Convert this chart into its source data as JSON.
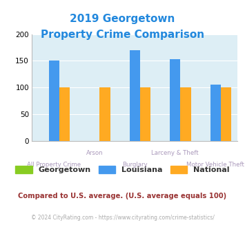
{
  "title_line1": "2019 Georgetown",
  "title_line2": "Property Crime Comparison",
  "categories": [
    "All Property Crime",
    "Arson",
    "Burglary",
    "Larceny & Theft",
    "Motor Vehicle Theft"
  ],
  "georgetown": [
    0,
    0,
    0,
    0,
    0
  ],
  "louisiana": [
    150,
    0,
    170,
    153,
    105
  ],
  "national": [
    100,
    100,
    100,
    100,
    100
  ],
  "colors": {
    "georgetown": "#88cc22",
    "louisiana": "#4499ee",
    "national": "#ffaa22"
  },
  "ylim": [
    0,
    200
  ],
  "yticks": [
    0,
    50,
    100,
    150,
    200
  ],
  "title_color": "#2288dd",
  "background_color": "#ddeef5",
  "legend_labels": [
    "Georgetown",
    "Louisiana",
    "National"
  ],
  "label_top": {
    "0": "All Property Crime",
    "2": "Burglary",
    "4": "Motor Vehicle Theft"
  },
  "label_bot": {
    "1": "Arson",
    "3": "Larceny & Theft"
  },
  "footnote1": "Compared to U.S. average. (U.S. average equals 100)",
  "footnote2": "© 2024 CityRating.com - https://www.cityrating.com/crime-statistics/",
  "footnote1_color": "#993333",
  "footnote2_color": "#aaaaaa",
  "label_color": "#aa99bb"
}
